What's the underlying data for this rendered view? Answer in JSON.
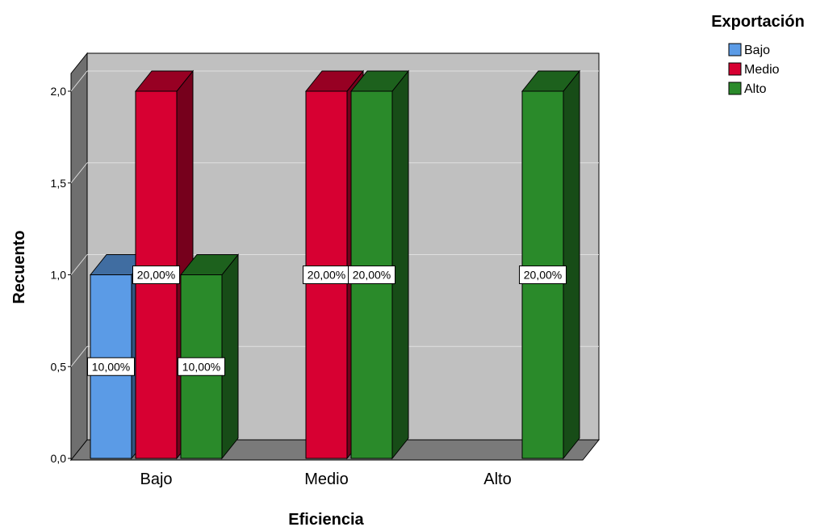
{
  "chart_data": {
    "type": "bar",
    "title": "",
    "xlabel": "Eficiencia",
    "ylabel": "Recuento",
    "categories": [
      "Bajo",
      "Medio",
      "Alto"
    ],
    "ylim": [
      0,
      2
    ],
    "yticks": [
      "0,0",
      "0,5",
      "1,0",
      "1,5",
      "2,0"
    ],
    "legend_title": "Exportación",
    "legend_position": "top-right",
    "grid": true,
    "three_d": true,
    "series": [
      {
        "name": "Bajo",
        "color": "#5b9be6",
        "values": [
          1,
          0,
          0
        ],
        "labels": [
          "10,00%",
          "",
          ""
        ]
      },
      {
        "name": "Medio",
        "color": "#d70032",
        "values": [
          2,
          2,
          0
        ],
        "labels": [
          "20,00%",
          "20,00%",
          ""
        ]
      },
      {
        "name": "Alto",
        "color": "#2a8a2a",
        "values": [
          1,
          2,
          2
        ],
        "labels": [
          "10,00%",
          "20,00%",
          "20,00%"
        ]
      }
    ]
  }
}
